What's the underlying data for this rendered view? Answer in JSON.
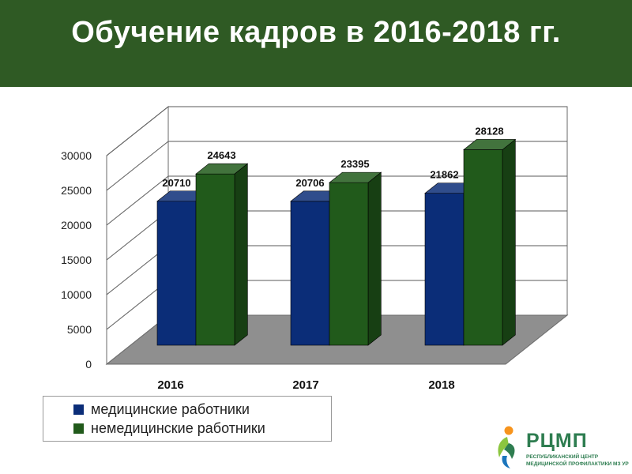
{
  "slide": {
    "title": "Обучение кадров в 2016-2018 гг."
  },
  "chart_data": {
    "type": "bar",
    "categories": [
      "2016",
      "2017",
      "2018"
    ],
    "series": [
      {
        "name": "медицинские работники",
        "values": [
          20710,
          20706,
          21862
        ],
        "color": "#0b2d78"
      },
      {
        "name": "немедицинские работники",
        "values": [
          24643,
          23395,
          28128
        ],
        "color": "#215a1b"
      }
    ],
    "ylim": [
      0,
      30000
    ],
    "yticks": [
      0,
      5000,
      10000,
      15000,
      20000,
      25000,
      30000
    ],
    "grid": true,
    "legend_position": "bottom-left",
    "three_d": true
  },
  "logo": {
    "name": "РЦМП",
    "subtitle_line1": "РЕСПУБЛИКАНСКИЙ ЦЕНТР",
    "subtitle_line2": "МЕДИЦИНСКОЙ ПРОФИЛАКТИКИ МЗ УР",
    "colors": {
      "green": "#2e7d50",
      "light_green": "#8cc63f",
      "orange": "#f7941d",
      "blue": "#1c75bc"
    }
  },
  "colors": {
    "title_band": "#2f5a24",
    "floor": "#8f8f8f",
    "gridline": "#5a5a5a"
  }
}
